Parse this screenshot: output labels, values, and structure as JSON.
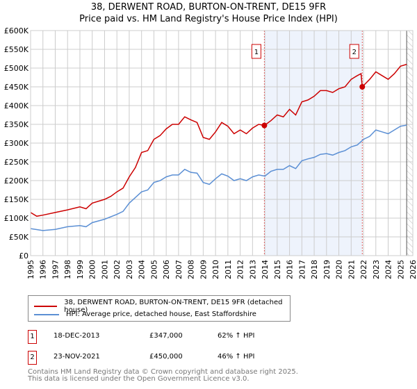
{
  "chart_data": {
    "type": "line",
    "title": "38, DERWENT ROAD, BURTON-ON-TRENT, DE15 9FR",
    "subtitle": "Price paid vs. HM Land Registry's House Price Index (HPI)",
    "xlim": [
      1995,
      2026
    ],
    "ylim": [
      0,
      600000
    ],
    "y_ticks": [
      0,
      50000,
      100000,
      150000,
      200000,
      250000,
      300000,
      350000,
      400000,
      450000,
      500000,
      550000,
      600000
    ],
    "y_tick_labels": [
      "£0",
      "£50K",
      "£100K",
      "£150K",
      "£200K",
      "£250K",
      "£300K",
      "£350K",
      "£400K",
      "£450K",
      "£500K",
      "£550K",
      "£600K"
    ],
    "x_ticks": [
      1995,
      1996,
      1997,
      1998,
      1999,
      2000,
      2001,
      2002,
      2003,
      2004,
      2005,
      2006,
      2007,
      2008,
      2009,
      2010,
      2011,
      2012,
      2013,
      2014,
      2015,
      2016,
      2017,
      2018,
      2019,
      2020,
      2021,
      2022,
      2023,
      2024,
      2025,
      2026
    ],
    "grid": true,
    "shaded_period": [
      2013.96,
      2021.9
    ],
    "forecast_hatch_from": 2025.5,
    "series": [
      {
        "name": "38, DERWENT ROAD, BURTON-ON-TRENT, DE15 9FR (detached house)",
        "color": "#cc0000",
        "x": [
          1995,
          1995.5,
          1996,
          1997,
          1998,
          1999,
          1999.5,
          2000,
          2001,
          2001.5,
          2002,
          2002.5,
          2003,
          2003.5,
          2004,
          2004.5,
          2005,
          2005.5,
          2006,
          2006.5,
          2007,
          2007.5,
          2008,
          2008.5,
          2009,
          2009.5,
          2010,
          2010.5,
          2011,
          2011.5,
          2012,
          2012.5,
          2013,
          2013.5,
          2013.96,
          2014.5,
          2015,
          2015.5,
          2016,
          2016.5,
          2017,
          2017.5,
          2018,
          2018.5,
          2019,
          2019.5,
          2020,
          2020.5,
          2021,
          2021.5,
          2021.8,
          2021.9,
          2022.5,
          2023,
          2023.5,
          2024,
          2024.5,
          2025,
          2025.5
        ],
        "y": [
          115000,
          105000,
          108000,
          115000,
          122000,
          130000,
          125000,
          140000,
          150000,
          158000,
          170000,
          180000,
          210000,
          235000,
          275000,
          280000,
          310000,
          320000,
          338000,
          350000,
          350000,
          370000,
          362000,
          355000,
          315000,
          310000,
          330000,
          355000,
          345000,
          325000,
          335000,
          325000,
          340000,
          350000,
          347000,
          360000,
          375000,
          370000,
          390000,
          375000,
          410000,
          415000,
          425000,
          440000,
          440000,
          435000,
          445000,
          450000,
          470000,
          480000,
          485000,
          450000,
          470000,
          490000,
          480000,
          470000,
          485000,
          505000,
          510000
        ]
      },
      {
        "name": "HPI: Average price, detached house, East Staffordshire",
        "color": "#5b8fd4",
        "x": [
          1995,
          1996,
          1997,
          1998,
          1999,
          1999.5,
          2000,
          2001,
          2002,
          2002.5,
          2003,
          2003.5,
          2004,
          2004.5,
          2005,
          2005.5,
          2006,
          2006.5,
          2007,
          2007.5,
          2008,
          2008.5,
          2009,
          2009.5,
          2010,
          2010.5,
          2011,
          2011.5,
          2012,
          2012.5,
          2013,
          2013.5,
          2014,
          2014.5,
          2015,
          2015.5,
          2016,
          2016.5,
          2017,
          2017.5,
          2018,
          2018.5,
          2019,
          2019.5,
          2020,
          2020.5,
          2021,
          2021.5,
          2022,
          2022.5,
          2023,
          2023.5,
          2024,
          2024.5,
          2025,
          2025.5
        ],
        "y": [
          72000,
          67000,
          70000,
          77000,
          80000,
          77000,
          88000,
          97000,
          110000,
          118000,
          140000,
          155000,
          170000,
          175000,
          195000,
          200000,
          210000,
          215000,
          215000,
          230000,
          222000,
          220000,
          195000,
          190000,
          205000,
          218000,
          212000,
          200000,
          205000,
          200000,
          210000,
          215000,
          212000,
          225000,
          230000,
          230000,
          240000,
          232000,
          253000,
          258000,
          262000,
          270000,
          272000,
          268000,
          275000,
          280000,
          290000,
          295000,
          310000,
          318000,
          335000,
          330000,
          325000,
          335000,
          345000,
          348000
        ]
      }
    ],
    "sales": [
      {
        "label": "1",
        "x": 2013.96,
        "price": 347000,
        "date": "18-DEC-2013",
        "price_text": "£347,000",
        "hpi_text": "62% ↑ HPI"
      },
      {
        "label": "2",
        "x": 2021.9,
        "price": 450000,
        "date": "23-NOV-2021",
        "price_text": "£450,000",
        "hpi_text": "46% ↑ HPI"
      }
    ]
  },
  "footer": {
    "line1": "Contains HM Land Registry data © Crown copyright and database right 2025.",
    "line2": "This data is licensed under the Open Government Licence v3.0."
  }
}
